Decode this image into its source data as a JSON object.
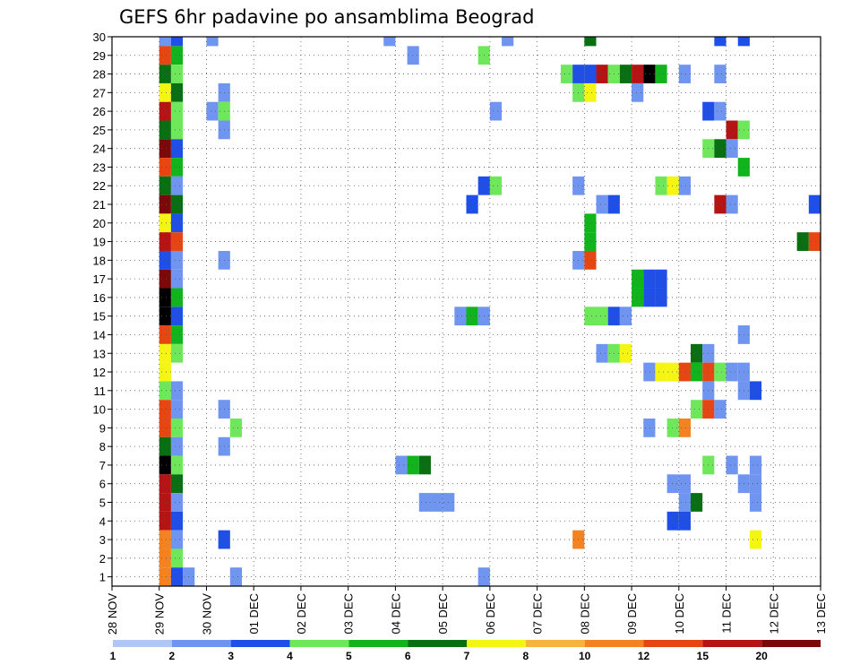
{
  "chart_data": {
    "type": "heatmap",
    "title": "GEFS 6hr padavine po ansamblima Beograd",
    "xlabel": "",
    "ylabel": "",
    "x_ticks": [
      "28 NOV",
      "29 NOV",
      "30 NOV",
      "01 DEC",
      "02 DEC",
      "03 DEC",
      "04 DEC",
      "05 DEC",
      "06 DEC",
      "07 DEC",
      "08 DEC",
      "09 DEC",
      "10 DEC",
      "11 DEC",
      "12 DEC",
      "13 DEC"
    ],
    "y_ticks": [
      "1",
      "2",
      "3",
      "4",
      "5",
      "6",
      "7",
      "8",
      "9",
      "10",
      "11",
      "12",
      "13",
      "14",
      "15",
      "16",
      "17",
      "18",
      "19",
      "20",
      "21",
      "22",
      "23",
      "24",
      "25",
      "26",
      "27",
      "28",
      "29",
      "30"
    ],
    "xlim": [
      0,
      15
    ],
    "ylim": [
      0.5,
      30
    ],
    "grid": true,
    "colorbar": {
      "labels": [
        "1",
        "2",
        "3",
        "4",
        "5",
        "6",
        "7",
        "8",
        "10",
        "12",
        "15",
        "20"
      ],
      "colors": [
        "#aec7f5",
        "#6f95f0",
        "#1f4fe6",
        "#6ee85a",
        "#12b41e",
        "#0a6e12",
        "#f5f514",
        "#f5b43c",
        "#f58220",
        "#e64614",
        "#b41414",
        "#7a0a0a"
      ]
    },
    "cell_days": 0.25,
    "cells": [
      [
        1.0,
        30,
        1
      ],
      [
        1.25,
        30,
        2
      ],
      [
        2.0,
        30,
        1
      ],
      [
        5.75,
        30,
        1
      ],
      [
        8.25,
        30,
        1
      ],
      [
        10.0,
        30,
        5
      ],
      [
        12.75,
        30,
        2
      ],
      [
        13.25,
        30,
        2
      ],
      [
        1.0,
        29,
        9
      ],
      [
        1.25,
        29,
        4
      ],
      [
        6.25,
        29,
        1
      ],
      [
        7.75,
        29,
        3
      ],
      [
        1.0,
        28,
        5
      ],
      [
        1.25,
        28,
        3
      ],
      [
        9.5,
        28,
        3
      ],
      [
        9.75,
        28,
        2
      ],
      [
        10.0,
        28,
        2
      ],
      [
        10.25,
        28,
        10
      ],
      [
        10.5,
        28,
        3
      ],
      [
        10.75,
        28,
        5
      ],
      [
        11.0,
        28,
        10
      ],
      [
        11.25,
        28,
        12
      ],
      [
        11.5,
        28,
        4
      ],
      [
        12.0,
        28,
        1
      ],
      [
        12.75,
        28,
        1
      ],
      [
        1.0,
        27,
        6
      ],
      [
        1.25,
        27,
        5
      ],
      [
        2.25,
        27,
        1
      ],
      [
        9.75,
        27,
        3
      ],
      [
        10.0,
        27,
        6
      ],
      [
        11.0,
        27,
        1
      ],
      [
        1.0,
        26,
        10
      ],
      [
        1.25,
        26,
        3
      ],
      [
        2.0,
        26,
        1
      ],
      [
        2.25,
        26,
        3
      ],
      [
        8.0,
        26,
        1
      ],
      [
        12.5,
        26,
        2
      ],
      [
        12.75,
        26,
        1
      ],
      [
        1.0,
        25,
        5
      ],
      [
        1.25,
        25,
        3
      ],
      [
        2.25,
        25,
        1
      ],
      [
        13.0,
        25,
        10
      ],
      [
        13.25,
        25,
        3
      ],
      [
        1.0,
        24,
        11
      ],
      [
        1.25,
        24,
        2
      ],
      [
        12.5,
        24,
        3
      ],
      [
        12.75,
        24,
        5
      ],
      [
        13.0,
        24,
        1
      ],
      [
        1.0,
        23,
        9
      ],
      [
        1.25,
        23,
        4
      ],
      [
        13.25,
        23,
        4
      ],
      [
        1.0,
        22,
        5
      ],
      [
        1.25,
        22,
        1
      ],
      [
        7.75,
        22,
        2
      ],
      [
        8.0,
        22,
        3
      ],
      [
        9.75,
        22,
        1
      ],
      [
        11.5,
        22,
        3
      ],
      [
        11.75,
        22,
        6
      ],
      [
        12.0,
        22,
        1
      ],
      [
        1.0,
        21,
        11
      ],
      [
        1.25,
        21,
        5
      ],
      [
        7.5,
        21,
        2
      ],
      [
        10.25,
        21,
        1
      ],
      [
        10.5,
        21,
        2
      ],
      [
        12.75,
        21,
        10
      ],
      [
        13.0,
        21,
        1
      ],
      [
        14.75,
        21,
        2
      ],
      [
        1.0,
        20,
        6
      ],
      [
        1.25,
        20,
        2
      ],
      [
        10.0,
        20,
        4
      ],
      [
        1.0,
        19,
        10
      ],
      [
        1.25,
        19,
        9
      ],
      [
        10.0,
        19,
        4
      ],
      [
        14.5,
        19,
        5
      ],
      [
        14.75,
        19,
        9
      ],
      [
        1.0,
        18,
        2
      ],
      [
        1.25,
        18,
        1
      ],
      [
        2.25,
        18,
        1
      ],
      [
        9.75,
        18,
        1
      ],
      [
        10.0,
        18,
        9
      ],
      [
        1.0,
        17,
        11
      ],
      [
        1.25,
        17,
        1
      ],
      [
        11.0,
        17,
        4
      ],
      [
        11.25,
        17,
        2
      ],
      [
        11.5,
        17,
        2
      ],
      [
        1.0,
        16,
        12
      ],
      [
        1.25,
        16,
        4
      ],
      [
        11.0,
        16,
        4
      ],
      [
        11.25,
        16,
        2
      ],
      [
        11.5,
        16,
        2
      ],
      [
        1.0,
        15,
        12
      ],
      [
        1.25,
        15,
        2
      ],
      [
        7.25,
        15,
        1
      ],
      [
        7.5,
        15,
        4
      ],
      [
        7.75,
        15,
        1
      ],
      [
        10.0,
        15,
        3
      ],
      [
        10.25,
        15,
        3
      ],
      [
        10.5,
        15,
        2
      ],
      [
        10.75,
        15,
        1
      ],
      [
        1.0,
        14,
        9
      ],
      [
        1.25,
        14,
        4
      ],
      [
        13.25,
        14,
        1
      ],
      [
        1.0,
        13,
        6
      ],
      [
        1.25,
        13,
        3
      ],
      [
        10.25,
        13,
        1
      ],
      [
        10.5,
        13,
        3
      ],
      [
        10.75,
        13,
        6
      ],
      [
        12.25,
        13,
        5
      ],
      [
        12.5,
        13,
        1
      ],
      [
        1.0,
        12,
        6
      ],
      [
        11.25,
        12,
        1
      ],
      [
        11.5,
        12,
        6
      ],
      [
        11.75,
        12,
        6
      ],
      [
        12.0,
        12,
        9
      ],
      [
        12.25,
        12,
        4
      ],
      [
        12.5,
        12,
        9
      ],
      [
        12.75,
        12,
        3
      ],
      [
        13.0,
        12,
        1
      ],
      [
        13.25,
        12,
        1
      ],
      [
        1.0,
        11,
        3
      ],
      [
        1.25,
        11,
        1
      ],
      [
        12.5,
        11,
        1
      ],
      [
        13.25,
        11,
        1
      ],
      [
        13.5,
        11,
        2
      ],
      [
        1.0,
        10,
        9
      ],
      [
        1.25,
        10,
        1
      ],
      [
        2.25,
        10,
        1
      ],
      [
        12.25,
        10,
        3
      ],
      [
        12.5,
        10,
        9
      ],
      [
        12.75,
        10,
        1
      ],
      [
        1.0,
        9,
        9
      ],
      [
        1.25,
        9,
        3
      ],
      [
        2.5,
        9,
        3
      ],
      [
        11.25,
        9,
        1
      ],
      [
        11.75,
        9,
        3
      ],
      [
        12.0,
        9,
        8
      ],
      [
        1.0,
        8,
        5
      ],
      [
        1.25,
        8,
        1
      ],
      [
        2.25,
        8,
        1
      ],
      [
        1.0,
        7,
        12
      ],
      [
        1.25,
        7,
        3
      ],
      [
        6.0,
        7,
        1
      ],
      [
        6.25,
        7,
        4
      ],
      [
        6.5,
        7,
        5
      ],
      [
        12.5,
        7,
        3
      ],
      [
        13.0,
        7,
        1
      ],
      [
        13.5,
        7,
        1
      ],
      [
        1.0,
        6,
        10
      ],
      [
        1.25,
        6,
        5
      ],
      [
        11.75,
        6,
        1
      ],
      [
        12.0,
        6,
        1
      ],
      [
        13.25,
        6,
        1
      ],
      [
        13.5,
        6,
        1
      ],
      [
        1.0,
        5,
        10
      ],
      [
        1.25,
        5,
        1
      ],
      [
        6.5,
        5,
        1
      ],
      [
        6.75,
        5,
        1
      ],
      [
        7.0,
        5,
        1
      ],
      [
        12.0,
        5,
        1
      ],
      [
        12.25,
        5,
        5
      ],
      [
        13.5,
        5,
        1
      ],
      [
        1.0,
        4,
        10
      ],
      [
        1.25,
        4,
        2
      ],
      [
        11.75,
        4,
        2
      ],
      [
        12.0,
        4,
        2
      ],
      [
        1.0,
        3,
        8
      ],
      [
        1.25,
        3,
        1
      ],
      [
        2.25,
        3,
        2
      ],
      [
        9.75,
        3,
        8
      ],
      [
        13.5,
        3,
        6
      ],
      [
        1.0,
        2,
        8
      ],
      [
        1.25,
        2,
        3
      ],
      [
        1.0,
        1,
        8
      ],
      [
        1.25,
        1,
        2
      ],
      [
        1.5,
        1,
        1
      ],
      [
        2.5,
        1,
        1
      ],
      [
        7.75,
        1,
        1
      ],
      [
        1.0,
        0,
        5
      ],
      [
        1.25,
        0,
        2
      ]
    ]
  }
}
